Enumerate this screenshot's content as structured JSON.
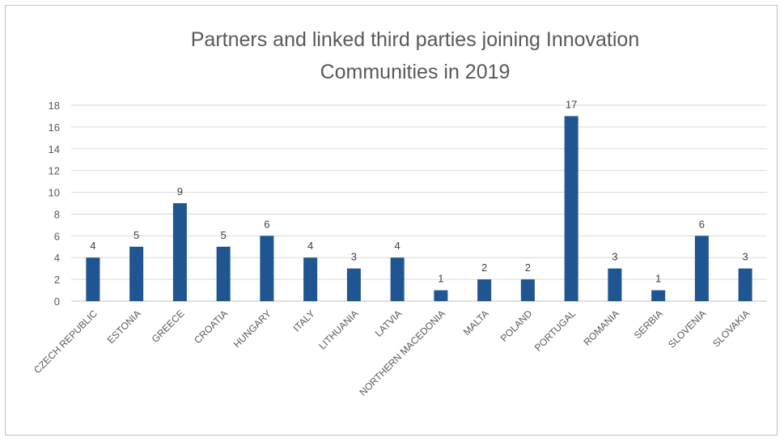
{
  "chart_data": {
    "type": "bar",
    "title_lines": [
      "Partners and linked third parties joining Innovation",
      "Communities in 2019"
    ],
    "xlabel": "",
    "ylabel": "",
    "ylim": [
      0,
      18
    ],
    "y_ticks": [
      0,
      2,
      4,
      6,
      8,
      10,
      12,
      14,
      16,
      18
    ],
    "grid": true,
    "legend": "none",
    "bar_color": "#1f5591",
    "categories": [
      "CZECH REPUBLIC",
      "ESTONIA",
      "GREECE",
      "CROATIA",
      "HUNGARY",
      "ITALY",
      "LITHUANIA",
      "LATVIA",
      "NORTHERN MACEDONIA",
      "MALTA",
      "POLAND",
      "PORTUGAL",
      "ROMANIA",
      "SERBIA",
      "SLOVENIA",
      "SLOVAKIA"
    ],
    "values": [
      4,
      5,
      9,
      5,
      6,
      4,
      3,
      4,
      1,
      2,
      2,
      17,
      3,
      1,
      6,
      3
    ]
  }
}
